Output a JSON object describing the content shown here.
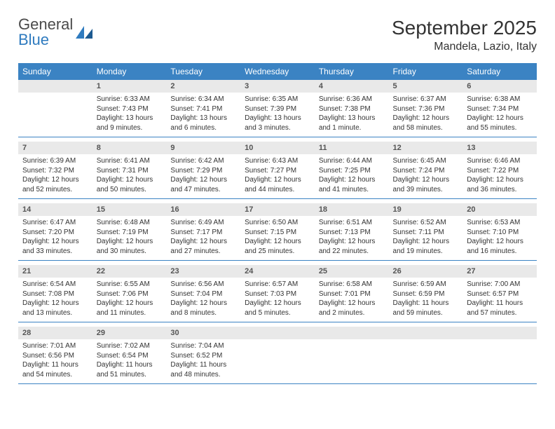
{
  "brand": {
    "word1": "General",
    "word2": "Blue"
  },
  "title": "September 2025",
  "location": "Mandela, Lazio, Italy",
  "colors": {
    "header_bg": "#3b83c3",
    "header_text": "#ffffff",
    "daynum_bg": "#e9e9e9",
    "row_border": "#3b83c3",
    "logo_accent": "#2f7bbf"
  },
  "typography": {
    "title_fontsize": 28,
    "location_fontsize": 16,
    "header_fontsize": 12,
    "body_fontsize": 10
  },
  "days_of_week": [
    "Sunday",
    "Monday",
    "Tuesday",
    "Wednesday",
    "Thursday",
    "Friday",
    "Saturday"
  ],
  "first_weekday_index": 1,
  "num_days": 30,
  "cells": {
    "1": {
      "sunrise": "6:33 AM",
      "sunset": "7:43 PM",
      "daylight": "13 hours and 9 minutes."
    },
    "2": {
      "sunrise": "6:34 AM",
      "sunset": "7:41 PM",
      "daylight": "13 hours and 6 minutes."
    },
    "3": {
      "sunrise": "6:35 AM",
      "sunset": "7:39 PM",
      "daylight": "13 hours and 3 minutes."
    },
    "4": {
      "sunrise": "6:36 AM",
      "sunset": "7:38 PM",
      "daylight": "13 hours and 1 minute."
    },
    "5": {
      "sunrise": "6:37 AM",
      "sunset": "7:36 PM",
      "daylight": "12 hours and 58 minutes."
    },
    "6": {
      "sunrise": "6:38 AM",
      "sunset": "7:34 PM",
      "daylight": "12 hours and 55 minutes."
    },
    "7": {
      "sunrise": "6:39 AM",
      "sunset": "7:32 PM",
      "daylight": "12 hours and 52 minutes."
    },
    "8": {
      "sunrise": "6:41 AM",
      "sunset": "7:31 PM",
      "daylight": "12 hours and 50 minutes."
    },
    "9": {
      "sunrise": "6:42 AM",
      "sunset": "7:29 PM",
      "daylight": "12 hours and 47 minutes."
    },
    "10": {
      "sunrise": "6:43 AM",
      "sunset": "7:27 PM",
      "daylight": "12 hours and 44 minutes."
    },
    "11": {
      "sunrise": "6:44 AM",
      "sunset": "7:25 PM",
      "daylight": "12 hours and 41 minutes."
    },
    "12": {
      "sunrise": "6:45 AM",
      "sunset": "7:24 PM",
      "daylight": "12 hours and 39 minutes."
    },
    "13": {
      "sunrise": "6:46 AM",
      "sunset": "7:22 PM",
      "daylight": "12 hours and 36 minutes."
    },
    "14": {
      "sunrise": "6:47 AM",
      "sunset": "7:20 PM",
      "daylight": "12 hours and 33 minutes."
    },
    "15": {
      "sunrise": "6:48 AM",
      "sunset": "7:19 PM",
      "daylight": "12 hours and 30 minutes."
    },
    "16": {
      "sunrise": "6:49 AM",
      "sunset": "7:17 PM",
      "daylight": "12 hours and 27 minutes."
    },
    "17": {
      "sunrise": "6:50 AM",
      "sunset": "7:15 PM",
      "daylight": "12 hours and 25 minutes."
    },
    "18": {
      "sunrise": "6:51 AM",
      "sunset": "7:13 PM",
      "daylight": "12 hours and 22 minutes."
    },
    "19": {
      "sunrise": "6:52 AM",
      "sunset": "7:11 PM",
      "daylight": "12 hours and 19 minutes."
    },
    "20": {
      "sunrise": "6:53 AM",
      "sunset": "7:10 PM",
      "daylight": "12 hours and 16 minutes."
    },
    "21": {
      "sunrise": "6:54 AM",
      "sunset": "7:08 PM",
      "daylight": "12 hours and 13 minutes."
    },
    "22": {
      "sunrise": "6:55 AM",
      "sunset": "7:06 PM",
      "daylight": "12 hours and 11 minutes."
    },
    "23": {
      "sunrise": "6:56 AM",
      "sunset": "7:04 PM",
      "daylight": "12 hours and 8 minutes."
    },
    "24": {
      "sunrise": "6:57 AM",
      "sunset": "7:03 PM",
      "daylight": "12 hours and 5 minutes."
    },
    "25": {
      "sunrise": "6:58 AM",
      "sunset": "7:01 PM",
      "daylight": "12 hours and 2 minutes."
    },
    "26": {
      "sunrise": "6:59 AM",
      "sunset": "6:59 PM",
      "daylight": "11 hours and 59 minutes."
    },
    "27": {
      "sunrise": "7:00 AM",
      "sunset": "6:57 PM",
      "daylight": "11 hours and 57 minutes."
    },
    "28": {
      "sunrise": "7:01 AM",
      "sunset": "6:56 PM",
      "daylight": "11 hours and 54 minutes."
    },
    "29": {
      "sunrise": "7:02 AM",
      "sunset": "6:54 PM",
      "daylight": "11 hours and 51 minutes."
    },
    "30": {
      "sunrise": "7:04 AM",
      "sunset": "6:52 PM",
      "daylight": "11 hours and 48 minutes."
    }
  },
  "labels": {
    "sunrise": "Sunrise:",
    "sunset": "Sunset:",
    "daylight": "Daylight:"
  }
}
